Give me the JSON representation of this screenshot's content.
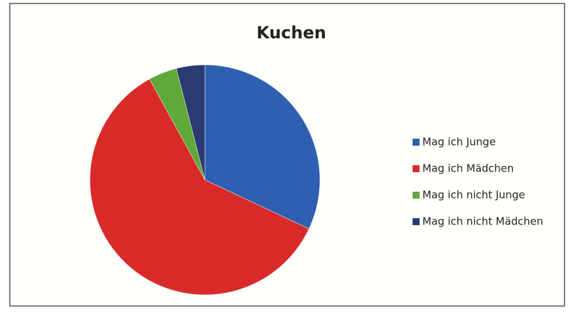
{
  "chart_data": {
    "type": "pie",
    "title": "Kuchen",
    "categories": [
      "Mag ich Junge",
      "Mag ich Mädchen",
      "Mag ich nicht  Junge",
      "Mag ich nicht Mädchen"
    ],
    "values": [
      32,
      60,
      4,
      4
    ],
    "colors": [
      "#2e5fb0",
      "#d92a2a",
      "#5fa83a",
      "#2b3a70"
    ],
    "legend": "right"
  }
}
